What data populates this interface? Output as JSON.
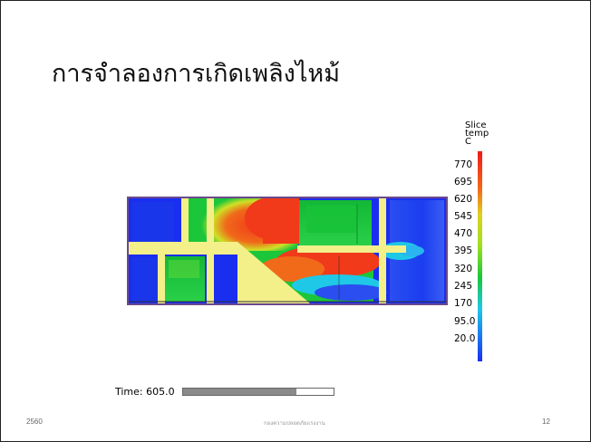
{
  "slide": {
    "title": "การจำลองการเกิดเพลิงไหม้",
    "footer_left": "2560",
    "footer_center": "กองความปลอดภัยแรงงาน",
    "footer_right": "12"
  },
  "simulation": {
    "legend": {
      "title_lines": [
        "Slice",
        "temp",
        "C"
      ],
      "ticks": [
        "770",
        "695",
        "620",
        "545",
        "470",
        "395",
        "320",
        "245",
        "170",
        "95.0",
        "20.0"
      ]
    },
    "time_label": "Time: 605.0",
    "time_progress": 0.75,
    "colors": {
      "cold": "#1a2ef0",
      "cool": "#1ec8e6",
      "mid": "#1cc63a",
      "warm": "#cfe026",
      "hot": "#f03a1a",
      "wall": "#f3f08a",
      "frame": "#6a4a8c"
    }
  }
}
